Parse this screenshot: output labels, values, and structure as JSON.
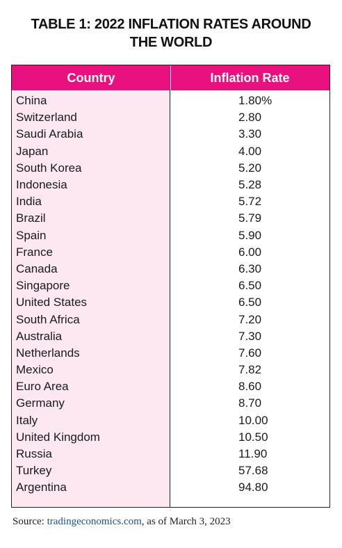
{
  "title": {
    "line1": "TABLE 1: 2022 INFLATION RATES AROUND",
    "line2": "THE WORLD"
  },
  "table": {
    "headers": {
      "country": "Country",
      "rate": "Inflation Rate"
    },
    "rows": [
      {
        "country": "China",
        "rate": "1.80%"
      },
      {
        "country": "Switzerland",
        "rate": "2.80"
      },
      {
        "country": "Saudi Arabia",
        "rate": "3.30"
      },
      {
        "country": "Japan",
        "rate": "4.00"
      },
      {
        "country": "South Korea",
        "rate": "5.20"
      },
      {
        "country": "Indonesia",
        "rate": "5.28"
      },
      {
        "country": "India",
        "rate": "5.72"
      },
      {
        "country": "Brazil",
        "rate": "5.79"
      },
      {
        "country": "Spain",
        "rate": "5.90"
      },
      {
        "country": "France",
        "rate": "6.00"
      },
      {
        "country": "Canada",
        "rate": "6.30"
      },
      {
        "country": "Singapore",
        "rate": "6.50"
      },
      {
        "country": "United States",
        "rate": "6.50"
      },
      {
        "country": "South Africa",
        "rate": "7.20"
      },
      {
        "country": "Australia",
        "rate": "7.30"
      },
      {
        "country": "Netherlands",
        "rate": "7.60"
      },
      {
        "country": "Mexico",
        "rate": "7.82"
      },
      {
        "country": "Euro Area",
        "rate": "8.60"
      },
      {
        "country": "Germany",
        "rate": "8.70"
      },
      {
        "country": "Italy",
        "rate": "10.00"
      },
      {
        "country": "United Kingdom",
        "rate": "10.50"
      },
      {
        "country": "Russia",
        "rate": "11.90"
      },
      {
        "country": "Turkey",
        "rate": "57.68"
      },
      {
        "country": "Argentina",
        "rate": "94.80"
      }
    ]
  },
  "source": {
    "prefix": "Source: ",
    "link": "tradingeconomics.com",
    "suffix": ", as of March 3, 2023"
  },
  "colors": {
    "header_bg": "#e8117f",
    "country_col_bg": "#fde8f2",
    "link": "#1d4f9e"
  }
}
